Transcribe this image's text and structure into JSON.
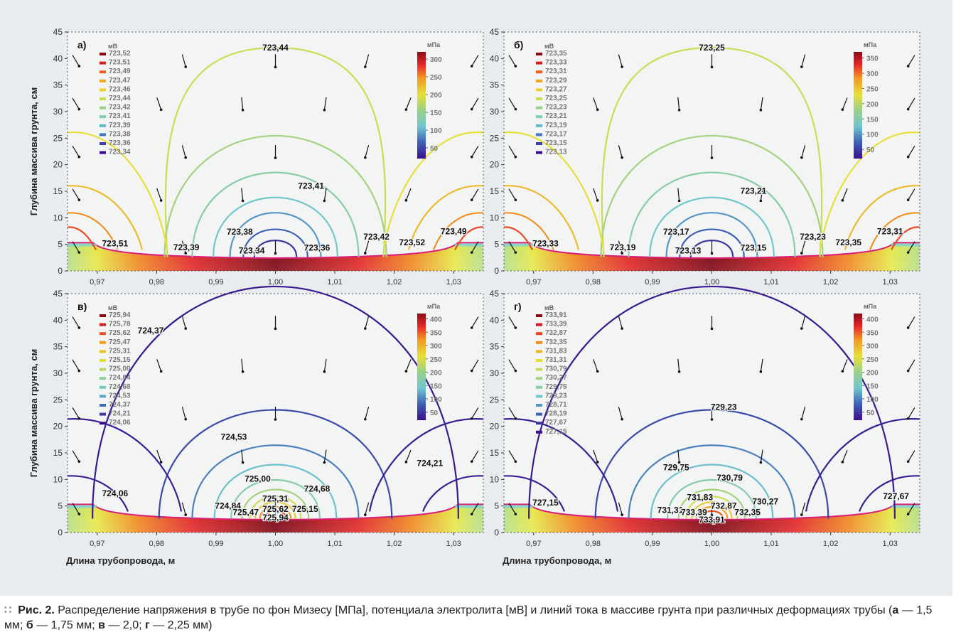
{
  "common": {
    "ylabel": "Глубина массива грунта, см",
    "xlabel": "Длина трубопровода, м",
    "x_ticks": [
      "0,97",
      "0,98",
      "0,99",
      "1,00",
      "1,01",
      "1,02",
      "1,03"
    ],
    "y_ticks": [
      "0",
      "5",
      "10",
      "15",
      "20",
      "25",
      "30",
      "35",
      "40",
      "45"
    ],
    "xlim": [
      0.965,
      1.035
    ],
    "ylim": [
      0,
      45
    ],
    "colorbar_unit": "мПа",
    "legend_unit": "мВ"
  },
  "chart_data": [
    {
      "type": "heatmap",
      "panel_label": "а)",
      "legend_values": [
        "723,52",
        "723,51",
        "723,49",
        "723,47",
        "723,46",
        "723,44",
        "723,42",
        "723,41",
        "723,39",
        "723,38",
        "723,36",
        "723,34"
      ],
      "colorbar_ticks": [
        "300",
        "250",
        "200",
        "150",
        "100",
        "50"
      ],
      "colorbar_range": [
        20,
        320
      ],
      "contour_labels": [
        {
          "text": "723,44",
          "x": 1.0,
          "y": 41.5
        },
        {
          "text": "723,41",
          "x": 1.006,
          "y": 15.5
        },
        {
          "text": "723,38",
          "x": 0.994,
          "y": 6.8
        },
        {
          "text": "723,34",
          "x": 0.996,
          "y": 3.3
        },
        {
          "text": "723,36",
          "x": 1.007,
          "y": 3.8
        },
        {
          "text": "723,42",
          "x": 1.017,
          "y": 5.9
        },
        {
          "text": "723,52",
          "x": 1.023,
          "y": 4.8
        },
        {
          "text": "723,49",
          "x": 1.03,
          "y": 6.9
        },
        {
          "text": "723,51",
          "x": 0.973,
          "y": 4.6
        },
        {
          "text": "723,39",
          "x": 0.985,
          "y": 3.9
        }
      ]
    },
    {
      "type": "heatmap",
      "panel_label": "б)",
      "legend_values": [
        "723,35",
        "723,33",
        "723,31",
        "723,29",
        "723,27",
        "723,25",
        "723,23",
        "723,21",
        "723,19",
        "723,17",
        "723,15",
        "723,13"
      ],
      "colorbar_ticks": [
        "350",
        "300",
        "250",
        "200",
        "150",
        "100",
        "50"
      ],
      "colorbar_range": [
        20,
        370
      ],
      "contour_labels": [
        {
          "text": "723,25",
          "x": 1.0,
          "y": 41.5
        },
        {
          "text": "723,21",
          "x": 1.007,
          "y": 14.5
        },
        {
          "text": "723,17",
          "x": 0.994,
          "y": 6.8
        },
        {
          "text": "723,13",
          "x": 0.996,
          "y": 3.3
        },
        {
          "text": "723,15",
          "x": 1.007,
          "y": 3.8
        },
        {
          "text": "723,23",
          "x": 1.017,
          "y": 5.9
        },
        {
          "text": "723,35",
          "x": 1.023,
          "y": 4.8
        },
        {
          "text": "723,31",
          "x": 1.03,
          "y": 6.9
        },
        {
          "text": "723,33",
          "x": 0.972,
          "y": 4.6
        },
        {
          "text": "723,19",
          "x": 0.985,
          "y": 3.9
        }
      ]
    },
    {
      "type": "heatmap",
      "panel_label": "в)",
      "legend_values": [
        "725,94",
        "725,78",
        "725,62",
        "725,47",
        "725,31",
        "725,15",
        "725,00",
        "724,84",
        "724,68",
        "724,53",
        "724,37",
        "724,21",
        "724,06"
      ],
      "colorbar_ticks": [
        "400",
        "350",
        "300",
        "250",
        "200",
        "150",
        "100",
        "50"
      ],
      "colorbar_range": [
        20,
        420
      ],
      "contour_labels": [
        {
          "text": "724,37",
          "x": 0.979,
          "y": 37.5
        },
        {
          "text": "724,53",
          "x": 0.993,
          "y": 17.5
        },
        {
          "text": "724,21",
          "x": 1.026,
          "y": 12.5
        },
        {
          "text": "725,00",
          "x": 0.997,
          "y": 9.6
        },
        {
          "text": "724,68",
          "x": 1.007,
          "y": 7.7
        },
        {
          "text": "724,06",
          "x": 0.973,
          "y": 6.8
        },
        {
          "text": "725,31",
          "x": 1.0,
          "y": 5.8
        },
        {
          "text": "724,84",
          "x": 0.992,
          "y": 4.5
        },
        {
          "text": "725,62",
          "x": 1.0,
          "y": 3.9
        },
        {
          "text": "725,15",
          "x": 1.005,
          "y": 3.9
        },
        {
          "text": "725,47",
          "x": 0.995,
          "y": 3.3
        },
        {
          "text": "725,94",
          "x": 1.0,
          "y": 2.3
        }
      ]
    },
    {
      "type": "heatmap",
      "panel_label": "г)",
      "legend_values": [
        "733,91",
        "733,39",
        "732,87",
        "732,35",
        "731,83",
        "731,31",
        "730,79",
        "730,27",
        "729,75",
        "729,23",
        "728,71",
        "728,19",
        "727,67",
        "727,15"
      ],
      "colorbar_ticks": [
        "400",
        "350",
        "300",
        "250",
        "200",
        "150",
        "100",
        "50"
      ],
      "colorbar_range": [
        20,
        420
      ],
      "contour_labels": [
        {
          "text": "729,23",
          "x": 1.002,
          "y": 23.1
        },
        {
          "text": "729,75",
          "x": 0.994,
          "y": 11.7
        },
        {
          "text": "730,79",
          "x": 1.003,
          "y": 9.8
        },
        {
          "text": "731,83",
          "x": 0.998,
          "y": 6.1
        },
        {
          "text": "730,27",
          "x": 1.009,
          "y": 5.3
        },
        {
          "text": "727,67",
          "x": 1.031,
          "y": 6.3
        },
        {
          "text": "727,15",
          "x": 0.972,
          "y": 5.1
        },
        {
          "text": "732,87",
          "x": 1.002,
          "y": 4.5
        },
        {
          "text": "731,31",
          "x": 0.993,
          "y": 3.7
        },
        {
          "text": "733,39",
          "x": 0.997,
          "y": 3.3
        },
        {
          "text": "732,35",
          "x": 1.006,
          "y": 3.3
        },
        {
          "text": "733,91",
          "x": 1.0,
          "y": 1.9
        }
      ]
    }
  ],
  "caption": {
    "bold_prefix": "Рис. 2.",
    "text": "Распределение напряжения в трубе по фон Мизесу [МПа], потенциала электролита [мВ] и линий тока в массиве грунта при различных деформациях трубы (",
    "a_key": "а",
    "a_val": " — 1,5 мм; ",
    "b_key": "б",
    "b_val": " — 1,75 мм; ",
    "c_key": "в",
    "c_val": " — 2,0; ",
    "d_key": "г",
    "d_val": " — 2,25 мм)"
  }
}
